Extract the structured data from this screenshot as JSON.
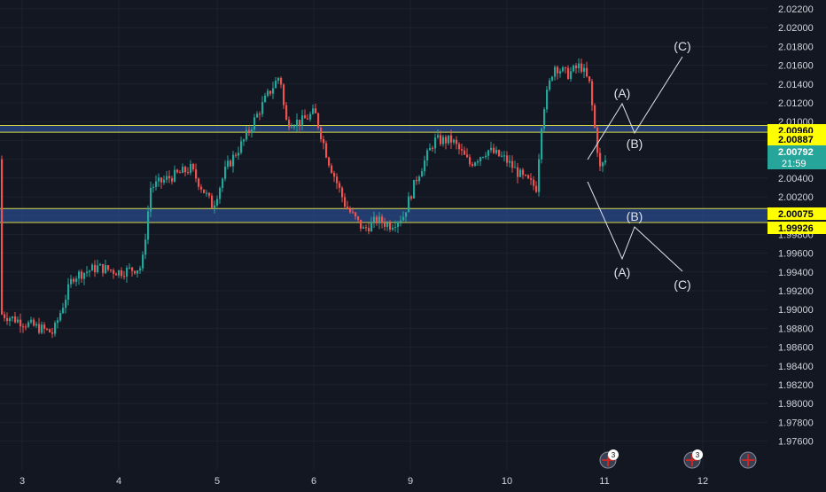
{
  "theme": {
    "background": "#131722",
    "grid": "#1e2230",
    "axis_text": "#d1d4dc",
    "candle_up": "#26a69a",
    "candle_down": "#ef5350",
    "zone_fill": "#2a4a8a",
    "zone_border": "#d8d84a",
    "label_yellow": "#ffff00",
    "label_teal": "#26a69a",
    "label_dark": "#2a2e39",
    "annotation": "#e0e3eb"
  },
  "chart_data": {
    "type": "candlestick",
    "title": "",
    "x_tick_labels": [
      "3",
      "4",
      "5",
      "6",
      "9",
      "10",
      "11",
      "12"
    ],
    "y_tick_labels": [
      "2.02200",
      "2.02000",
      "2.01800",
      "2.01600",
      "2.01400",
      "2.01200",
      "2.01000",
      "2.00800",
      "2.00600",
      "2.00400",
      "2.00200",
      "2.00000",
      "1.99800",
      "1.99600",
      "1.99400",
      "1.99200",
      "1.99000",
      "1.98800",
      "1.98600",
      "1.98400",
      "1.98200",
      "1.98000",
      "1.97800",
      "1.97600"
    ],
    "ylim": [
      1.9748,
      2.0232
    ],
    "price_labels": [
      {
        "text": "2.00960",
        "value": 2.0096,
        "style": "yellow"
      },
      {
        "text": "2.00887",
        "value": 2.00887,
        "style": "yellow"
      },
      {
        "text": "2.00792",
        "value": 2.00792,
        "style": "teal"
      },
      {
        "text": "2.00075",
        "value": 2.00075,
        "style": "yellow"
      },
      {
        "text": "1.99926",
        "value": 1.99926,
        "style": "yellow"
      }
    ],
    "countdown": "21:59",
    "resistance_zone": [
      2.00887,
      2.0096
    ],
    "support_zone": [
      1.99926,
      2.00075
    ],
    "annotations": [
      "(A)",
      "(B)",
      "(C)",
      "(A)",
      "(B)",
      "(C)"
    ],
    "event_badges": [
      {
        "count": "3"
      },
      {
        "count": "3"
      },
      {
        "count": ""
      }
    ]
  }
}
